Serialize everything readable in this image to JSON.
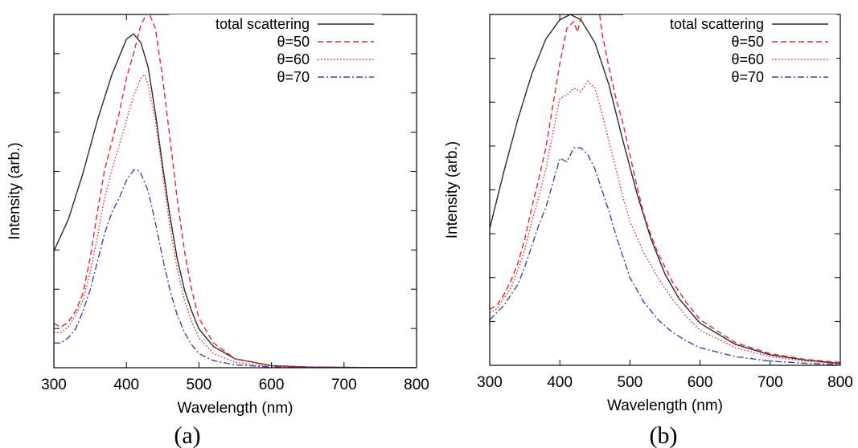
{
  "chart_data": [
    {
      "type": "line",
      "panel_label": "(a)",
      "xlabel": "Wavelength (nm)",
      "ylabel": "Intensity (arb.)",
      "xlim": [
        300,
        800
      ],
      "ylim": [
        0,
        1
      ],
      "x_ticks": [
        "300",
        "400",
        "500",
        "600",
        "700",
        "800"
      ],
      "y_tick_count": 8,
      "legend_position": "top-right",
      "series": [
        {
          "name": "total scattering",
          "color": "#2b2b2b",
          "dash": "solid",
          "points": [
            [
              300,
              0.33
            ],
            [
              320,
              0.42
            ],
            [
              340,
              0.55
            ],
            [
              360,
              0.7
            ],
            [
              380,
              0.83
            ],
            [
              400,
              0.93
            ],
            [
              410,
              0.945
            ],
            [
              420,
              0.92
            ],
            [
              430,
              0.85
            ],
            [
              440,
              0.72
            ],
            [
              450,
              0.57
            ],
            [
              460,
              0.43
            ],
            [
              470,
              0.31
            ],
            [
              480,
              0.22
            ],
            [
              490,
              0.16
            ],
            [
              500,
              0.11
            ],
            [
              520,
              0.06
            ],
            [
              550,
              0.025
            ],
            [
              600,
              0.006
            ],
            [
              650,
              0.002
            ],
            [
              700,
              0.001
            ],
            [
              800,
              0
            ]
          ]
        },
        {
          "name": "θ=50",
          "color": "#e8262b",
          "dash": "7 4",
          "points": [
            [
              300,
              0.125
            ],
            [
              310,
              0.115
            ],
            [
              320,
              0.13
            ],
            [
              330,
              0.16
            ],
            [
              340,
              0.21
            ],
            [
              350,
              0.31
            ],
            [
              360,
              0.44
            ],
            [
              370,
              0.56
            ],
            [
              380,
              0.64
            ],
            [
              390,
              0.72
            ],
            [
              400,
              0.82
            ],
            [
              410,
              0.89
            ],
            [
              420,
              0.97
            ],
            [
              430,
              1.01
            ],
            [
              440,
              0.96
            ],
            [
              450,
              0.82
            ],
            [
              460,
              0.65
            ],
            [
              470,
              0.48
            ],
            [
              480,
              0.33
            ],
            [
              490,
              0.22
            ],
            [
              500,
              0.14
            ],
            [
              520,
              0.07
            ],
            [
              550,
              0.025
            ],
            [
              600,
              0.006
            ],
            [
              650,
              0.002
            ],
            [
              700,
              0.001
            ],
            [
              800,
              0
            ]
          ]
        },
        {
          "name": "θ=60",
          "color": "#e8262b",
          "dash": "1.5 2.5",
          "points": [
            [
              300,
              0.1
            ],
            [
              310,
              0.1
            ],
            [
              320,
              0.115
            ],
            [
              330,
              0.15
            ],
            [
              340,
              0.19
            ],
            [
              350,
              0.27
            ],
            [
              360,
              0.37
            ],
            [
              370,
              0.48
            ],
            [
              380,
              0.56
            ],
            [
              390,
              0.63
            ],
            [
              400,
              0.7
            ],
            [
              410,
              0.77
            ],
            [
              420,
              0.82
            ],
            [
              425,
              0.83
            ],
            [
              430,
              0.8
            ],
            [
              440,
              0.7
            ],
            [
              450,
              0.55
            ],
            [
              460,
              0.4
            ],
            [
              470,
              0.28
            ],
            [
              480,
              0.19
            ],
            [
              490,
              0.13
            ],
            [
              500,
              0.085
            ],
            [
              520,
              0.04
            ],
            [
              550,
              0.015
            ],
            [
              600,
              0.004
            ],
            [
              650,
              0.001
            ],
            [
              800,
              0
            ]
          ]
        },
        {
          "name": "θ=70",
          "color": "#3f45a8",
          "dash": "8 3 2 3",
          "points": [
            [
              300,
              0.07
            ],
            [
              310,
              0.07
            ],
            [
              320,
              0.085
            ],
            [
              330,
              0.11
            ],
            [
              340,
              0.16
            ],
            [
              350,
              0.22
            ],
            [
              360,
              0.3
            ],
            [
              370,
              0.38
            ],
            [
              380,
              0.44
            ],
            [
              390,
              0.48
            ],
            [
              400,
              0.53
            ],
            [
              410,
              0.56
            ],
            [
              415,
              0.56
            ],
            [
              420,
              0.55
            ],
            [
              430,
              0.5
            ],
            [
              440,
              0.41
            ],
            [
              450,
              0.31
            ],
            [
              460,
              0.22
            ],
            [
              470,
              0.15
            ],
            [
              480,
              0.1
            ],
            [
              490,
              0.065
            ],
            [
              500,
              0.04
            ],
            [
              520,
              0.02
            ],
            [
              550,
              0.008
            ],
            [
              600,
              0.002
            ],
            [
              800,
              0
            ]
          ]
        }
      ]
    },
    {
      "type": "line",
      "panel_label": "(b)",
      "xlabel": "Wavelength (nm)",
      "ylabel": "Intensity (arb.)",
      "xlim": [
        300,
        800
      ],
      "ylim": [
        0,
        1
      ],
      "x_ticks": [
        "300",
        "400",
        "500",
        "600",
        "700",
        "800"
      ],
      "y_tick_count": 7,
      "legend_position": "top-right",
      "series": [
        {
          "name": "total scattering",
          "color": "#2b2b2b",
          "dash": "solid",
          "points": [
            [
              300,
              0.39
            ],
            [
              320,
              0.55
            ],
            [
              340,
              0.7
            ],
            [
              360,
              0.83
            ],
            [
              380,
              0.93
            ],
            [
              400,
              0.985
            ],
            [
              415,
              1.0
            ],
            [
              430,
              0.985
            ],
            [
              450,
              0.92
            ],
            [
              470,
              0.8
            ],
            [
              490,
              0.64
            ],
            [
              510,
              0.49
            ],
            [
              530,
              0.36
            ],
            [
              550,
              0.26
            ],
            [
              570,
              0.19
            ],
            [
              600,
              0.12
            ],
            [
              650,
              0.06
            ],
            [
              700,
              0.03
            ],
            [
              750,
              0.015
            ],
            [
              800,
              0.005
            ]
          ]
        },
        {
          "name": "θ=50",
          "color": "#e8262b",
          "dash": "7 4",
          "points": [
            [
              300,
              0.16
            ],
            [
              310,
              0.17
            ],
            [
              320,
              0.2
            ],
            [
              330,
              0.24
            ],
            [
              340,
              0.29
            ],
            [
              350,
              0.36
            ],
            [
              360,
              0.45
            ],
            [
              370,
              0.53
            ],
            [
              380,
              0.62
            ],
            [
              390,
              0.74
            ],
            [
              400,
              0.86
            ],
            [
              410,
              0.96
            ],
            [
              420,
              0.98
            ],
            [
              425,
              0.95
            ],
            [
              430,
              0.99
            ],
            [
              440,
              1.01
            ],
            [
              450,
              1.0
            ],
            [
              455,
              1.03
            ],
            [
              460,
              0.95
            ],
            [
              470,
              0.85
            ],
            [
              480,
              0.76
            ],
            [
              490,
              0.69
            ],
            [
              500,
              0.6
            ],
            [
              510,
              0.51
            ],
            [
              520,
              0.43
            ],
            [
              530,
              0.37
            ],
            [
              540,
              0.32
            ],
            [
              560,
              0.24
            ],
            [
              580,
              0.18
            ],
            [
              600,
              0.13
            ],
            [
              650,
              0.065
            ],
            [
              700,
              0.033
            ],
            [
              750,
              0.017
            ],
            [
              800,
              0.008
            ]
          ]
        },
        {
          "name": "θ=60",
          "color": "#e8262b",
          "dash": "1.5 2.5",
          "points": [
            [
              300,
              0.15
            ],
            [
              310,
              0.16
            ],
            [
              320,
              0.19
            ],
            [
              330,
              0.22
            ],
            [
              340,
              0.27
            ],
            [
              350,
              0.33
            ],
            [
              360,
              0.41
            ],
            [
              370,
              0.48
            ],
            [
              380,
              0.56
            ],
            [
              390,
              0.66
            ],
            [
              400,
              0.76
            ],
            [
              410,
              0.77
            ],
            [
              420,
              0.79
            ],
            [
              430,
              0.78
            ],
            [
              440,
              0.81
            ],
            [
              450,
              0.79
            ],
            [
              460,
              0.72
            ],
            [
              470,
              0.64
            ],
            [
              480,
              0.56
            ],
            [
              490,
              0.48
            ],
            [
              500,
              0.41
            ],
            [
              520,
              0.32
            ],
            [
              540,
              0.25
            ],
            [
              560,
              0.19
            ],
            [
              580,
              0.14
            ],
            [
              600,
              0.1
            ],
            [
              650,
              0.05
            ],
            [
              700,
              0.025
            ],
            [
              750,
              0.012
            ],
            [
              800,
              0.005
            ]
          ]
        },
        {
          "name": "θ=70",
          "color": "#3f45a8",
          "dash": "8 3 2 3",
          "points": [
            [
              300,
              0.13
            ],
            [
              310,
              0.15
            ],
            [
              320,
              0.17
            ],
            [
              330,
              0.2
            ],
            [
              340,
              0.23
            ],
            [
              350,
              0.28
            ],
            [
              360,
              0.34
            ],
            [
              370,
              0.4
            ],
            [
              380,
              0.45
            ],
            [
              390,
              0.52
            ],
            [
              400,
              0.59
            ],
            [
              410,
              0.58
            ],
            [
              420,
              0.62
            ],
            [
              430,
              0.62
            ],
            [
              440,
              0.6
            ],
            [
              450,
              0.56
            ],
            [
              460,
              0.5
            ],
            [
              470,
              0.44
            ],
            [
              480,
              0.37
            ],
            [
              490,
              0.31
            ],
            [
              500,
              0.25
            ],
            [
              520,
              0.18
            ],
            [
              540,
              0.13
            ],
            [
              560,
              0.095
            ],
            [
              580,
              0.07
            ],
            [
              600,
              0.05
            ],
            [
              650,
              0.025
            ],
            [
              700,
              0.012
            ],
            [
              750,
              0.006
            ],
            [
              800,
              0.002
            ]
          ]
        }
      ]
    }
  ]
}
